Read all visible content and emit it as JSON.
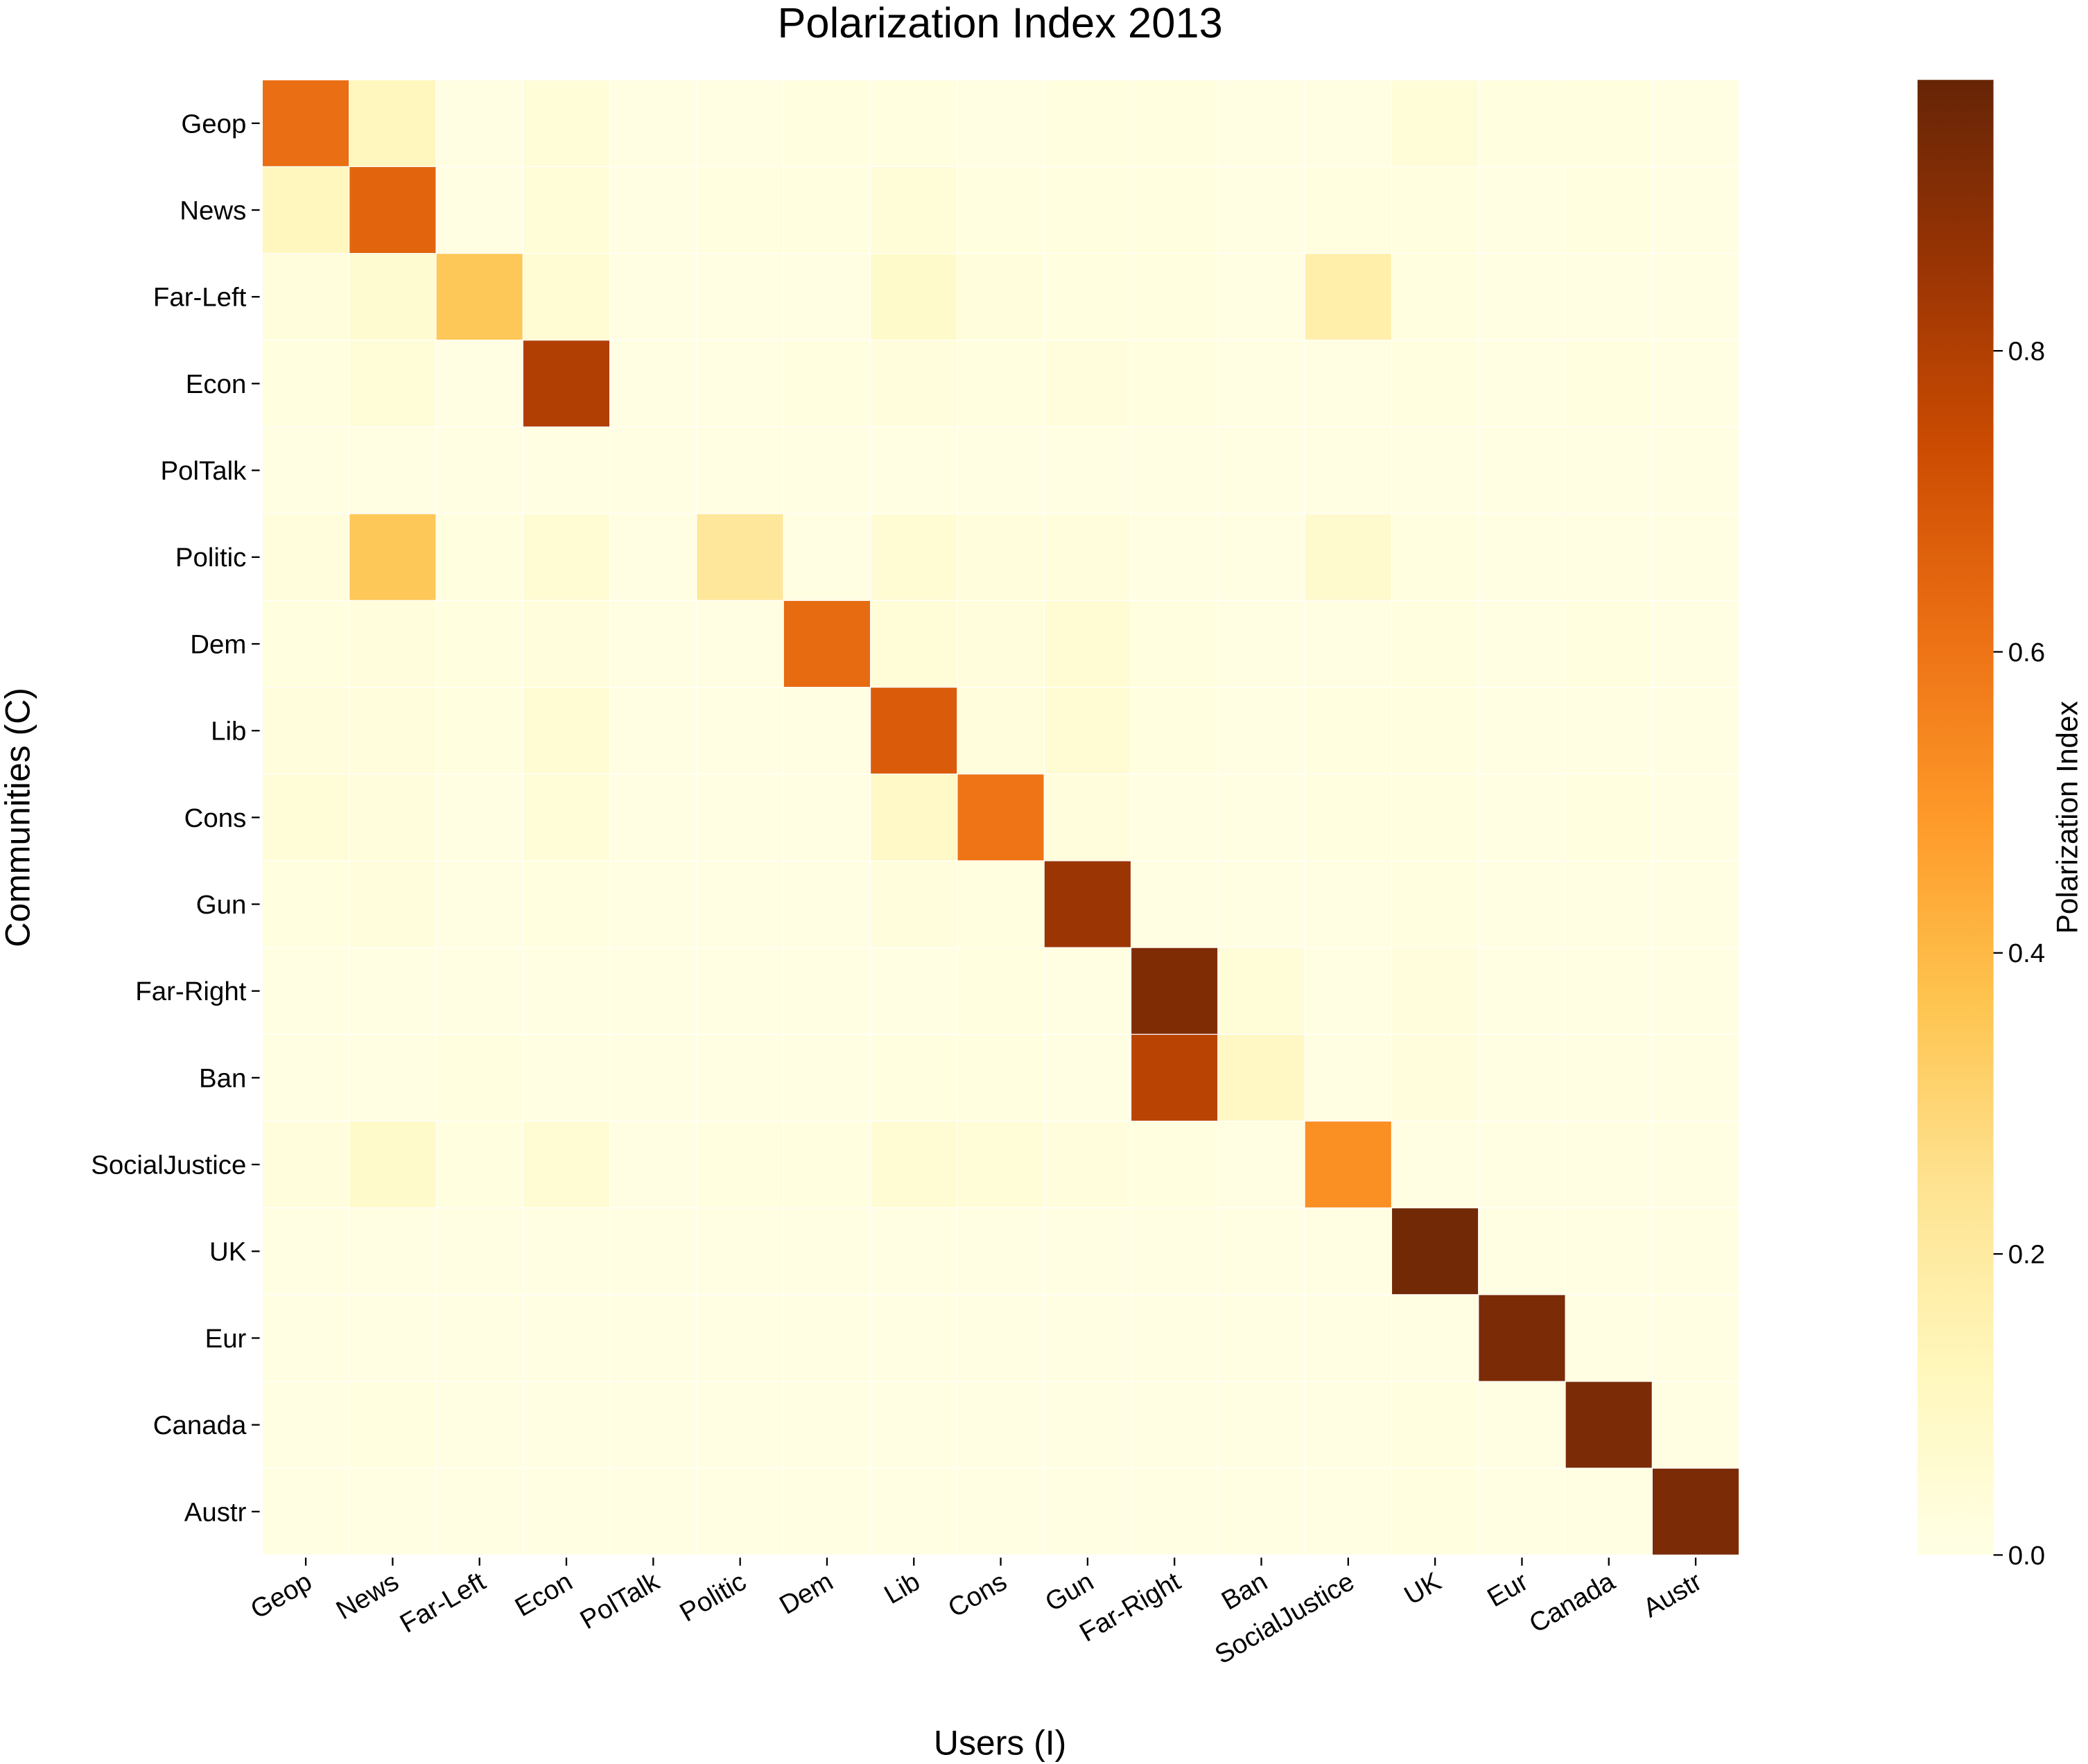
{
  "chart_data": {
    "type": "heatmap",
    "title": "Polarization Index 2013",
    "xlabel": "Users (I)",
    "ylabel": "Communities (C)",
    "colorbar_label": "Polarization Index",
    "colormap": [
      "#ffffe5",
      "#fff7bc",
      "#fee391",
      "#fec44f",
      "#fe9929",
      "#ec7014",
      "#cc4c02",
      "#993404",
      "#662506"
    ],
    "vrange": [
      0,
      0.98
    ],
    "colorbar_ticks": [
      0.0,
      0.2,
      0.4,
      0.6,
      0.8
    ],
    "colorbar_tick_labels": [
      "0.0",
      "0.2",
      "0.4",
      "0.6",
      "0.8"
    ],
    "x_categories": [
      "Geop",
      "News",
      "Far-Left",
      "Econ",
      "PolTalk",
      "Politic",
      "Dem",
      "Lib",
      "Cons",
      "Gun",
      "Far-Right",
      "Ban",
      "SocialJustice",
      "UK",
      "Eur",
      "Canada",
      "Austr"
    ],
    "y_categories": [
      "Geop",
      "News",
      "Far-Left",
      "Econ",
      "PolTalk",
      "Politic",
      "Dem",
      "Lib",
      "Cons",
      "Gun",
      "Far-Right",
      "Ban",
      "SocialJustice",
      "UK",
      "Eur",
      "Canada",
      "Austr"
    ],
    "values": [
      [
        0.62,
        0.12,
        0.01,
        0.04,
        0.01,
        0.01,
        0.02,
        0.02,
        0.01,
        0.02,
        0.02,
        0.01,
        0.01,
        0.04,
        0.02,
        0.02,
        0.01
      ],
      [
        0.12,
        0.65,
        0.01,
        0.04,
        0.01,
        0.02,
        0.02,
        0.04,
        0.02,
        0.02,
        0.02,
        0.01,
        0.02,
        0.02,
        0.01,
        0.02,
        0.01
      ],
      [
        0.03,
        0.06,
        0.35,
        0.05,
        0.01,
        0.01,
        0.01,
        0.08,
        0.03,
        0.02,
        0.02,
        0.01,
        0.17,
        0.02,
        0.01,
        0.01,
        0.01
      ],
      [
        0.02,
        0.04,
        0.01,
        0.8,
        0.01,
        0.01,
        0.02,
        0.03,
        0.02,
        0.03,
        0.02,
        0.01,
        0.01,
        0.02,
        0.01,
        0.02,
        0.01
      ],
      [
        0.01,
        0.01,
        0.01,
        0.01,
        0.01,
        0.01,
        0.01,
        0.01,
        0.01,
        0.01,
        0.01,
        0.01,
        0.01,
        0.01,
        0.01,
        0.01,
        0.01
      ],
      [
        0.03,
        0.35,
        0.02,
        0.05,
        0.01,
        0.22,
        0.01,
        0.05,
        0.03,
        0.03,
        0.01,
        0.01,
        0.07,
        0.02,
        0.01,
        0.01,
        0.01
      ],
      [
        0.02,
        0.03,
        0.02,
        0.03,
        0.01,
        0.01,
        0.63,
        0.04,
        0.03,
        0.05,
        0.02,
        0.01,
        0.01,
        0.02,
        0.01,
        0.02,
        0.01
      ],
      [
        0.03,
        0.03,
        0.02,
        0.05,
        0.01,
        0.01,
        0.01,
        0.68,
        0.03,
        0.05,
        0.02,
        0.01,
        0.02,
        0.02,
        0.01,
        0.01,
        0.01
      ],
      [
        0.04,
        0.03,
        0.01,
        0.04,
        0.01,
        0.01,
        0.01,
        0.09,
        0.6,
        0.03,
        0.01,
        0.01,
        0.02,
        0.02,
        0.01,
        0.02,
        0.01
      ],
      [
        0.02,
        0.03,
        0.01,
        0.02,
        0.01,
        0.01,
        0.01,
        0.03,
        0.02,
        0.85,
        0.01,
        0.01,
        0.01,
        0.02,
        0.01,
        0.01,
        0.01
      ],
      [
        0.01,
        0.01,
        0.01,
        0.01,
        0.01,
        0.01,
        0.01,
        0.01,
        0.02,
        0.01,
        0.92,
        0.04,
        0.01,
        0.03,
        0.01,
        0.01,
        0.01
      ],
      [
        0.01,
        0.01,
        0.02,
        0.01,
        0.01,
        0.01,
        0.01,
        0.02,
        0.02,
        0.01,
        0.78,
        0.1,
        0.01,
        0.03,
        0.01,
        0.01,
        0.01
      ],
      [
        0.03,
        0.08,
        0.02,
        0.05,
        0.01,
        0.02,
        0.02,
        0.05,
        0.04,
        0.03,
        0.02,
        0.01,
        0.52,
        0.01,
        0.01,
        0.01,
        0.01
      ],
      [
        0.01,
        0.01,
        0.01,
        0.01,
        0.01,
        0.01,
        0.01,
        0.01,
        0.01,
        0.01,
        0.01,
        0.01,
        0.01,
        0.95,
        0.01,
        0.01,
        0.01
      ],
      [
        0.01,
        0.01,
        0.01,
        0.01,
        0.01,
        0.01,
        0.01,
        0.01,
        0.01,
        0.01,
        0.01,
        0.01,
        0.01,
        0.01,
        0.93,
        0.01,
        0.01
      ],
      [
        0.01,
        0.02,
        0.01,
        0.01,
        0.01,
        0.01,
        0.01,
        0.01,
        0.01,
        0.01,
        0.01,
        0.01,
        0.01,
        0.02,
        0.01,
        0.93,
        0.01
      ],
      [
        0.01,
        0.01,
        0.01,
        0.01,
        0.01,
        0.01,
        0.01,
        0.01,
        0.01,
        0.01,
        0.01,
        0.01,
        0.01,
        0.02,
        0.01,
        0.01,
        0.93
      ]
    ]
  }
}
